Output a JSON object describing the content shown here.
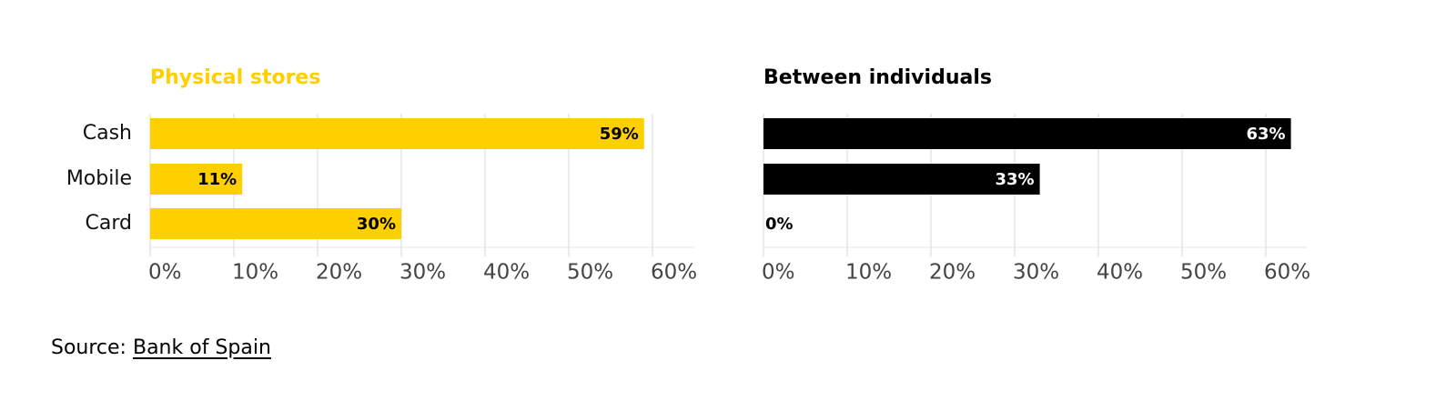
{
  "chart_data": [
    {
      "type": "hbar",
      "title": "Physical stores",
      "title_color": "#ffd000",
      "categories": [
        "Cash",
        "Mobile",
        "Card"
      ],
      "values": [
        59,
        11,
        30
      ],
      "value_labels": [
        "59%",
        "11%",
        "30%"
      ],
      "color": "#ffd000",
      "value_label_color": "#000000",
      "xlim": [
        0,
        65
      ],
      "xticks": [
        {
          "value": 0,
          "label": "0%"
        },
        {
          "value": 10,
          "label": "10%"
        },
        {
          "value": 20,
          "label": "20%"
        },
        {
          "value": 30,
          "label": "30%"
        },
        {
          "value": 40,
          "label": "40%"
        },
        {
          "value": 50,
          "label": "50%"
        },
        {
          "value": 60,
          "label": "60%"
        }
      ],
      "grid": true
    },
    {
      "type": "hbar",
      "title": "Between individuals",
      "title_color": "#000000",
      "values": [
        63,
        33,
        0
      ],
      "value_labels": [
        "63%",
        "33%",
        "0%"
      ],
      "color": "#000000",
      "value_label_color": "#ffffff",
      "xlim": [
        0,
        65
      ],
      "xticks": [
        {
          "value": 0,
          "label": "0%"
        },
        {
          "value": 10,
          "label": "10%"
        },
        {
          "value": 20,
          "label": "20%"
        },
        {
          "value": 30,
          "label": "30%"
        },
        {
          "value": 40,
          "label": "40%"
        },
        {
          "value": 50,
          "label": "50%"
        },
        {
          "value": 60,
          "label": "60%"
        }
      ],
      "grid": true
    }
  ],
  "source": {
    "label": "Source:",
    "link": "Bank of Spain"
  }
}
